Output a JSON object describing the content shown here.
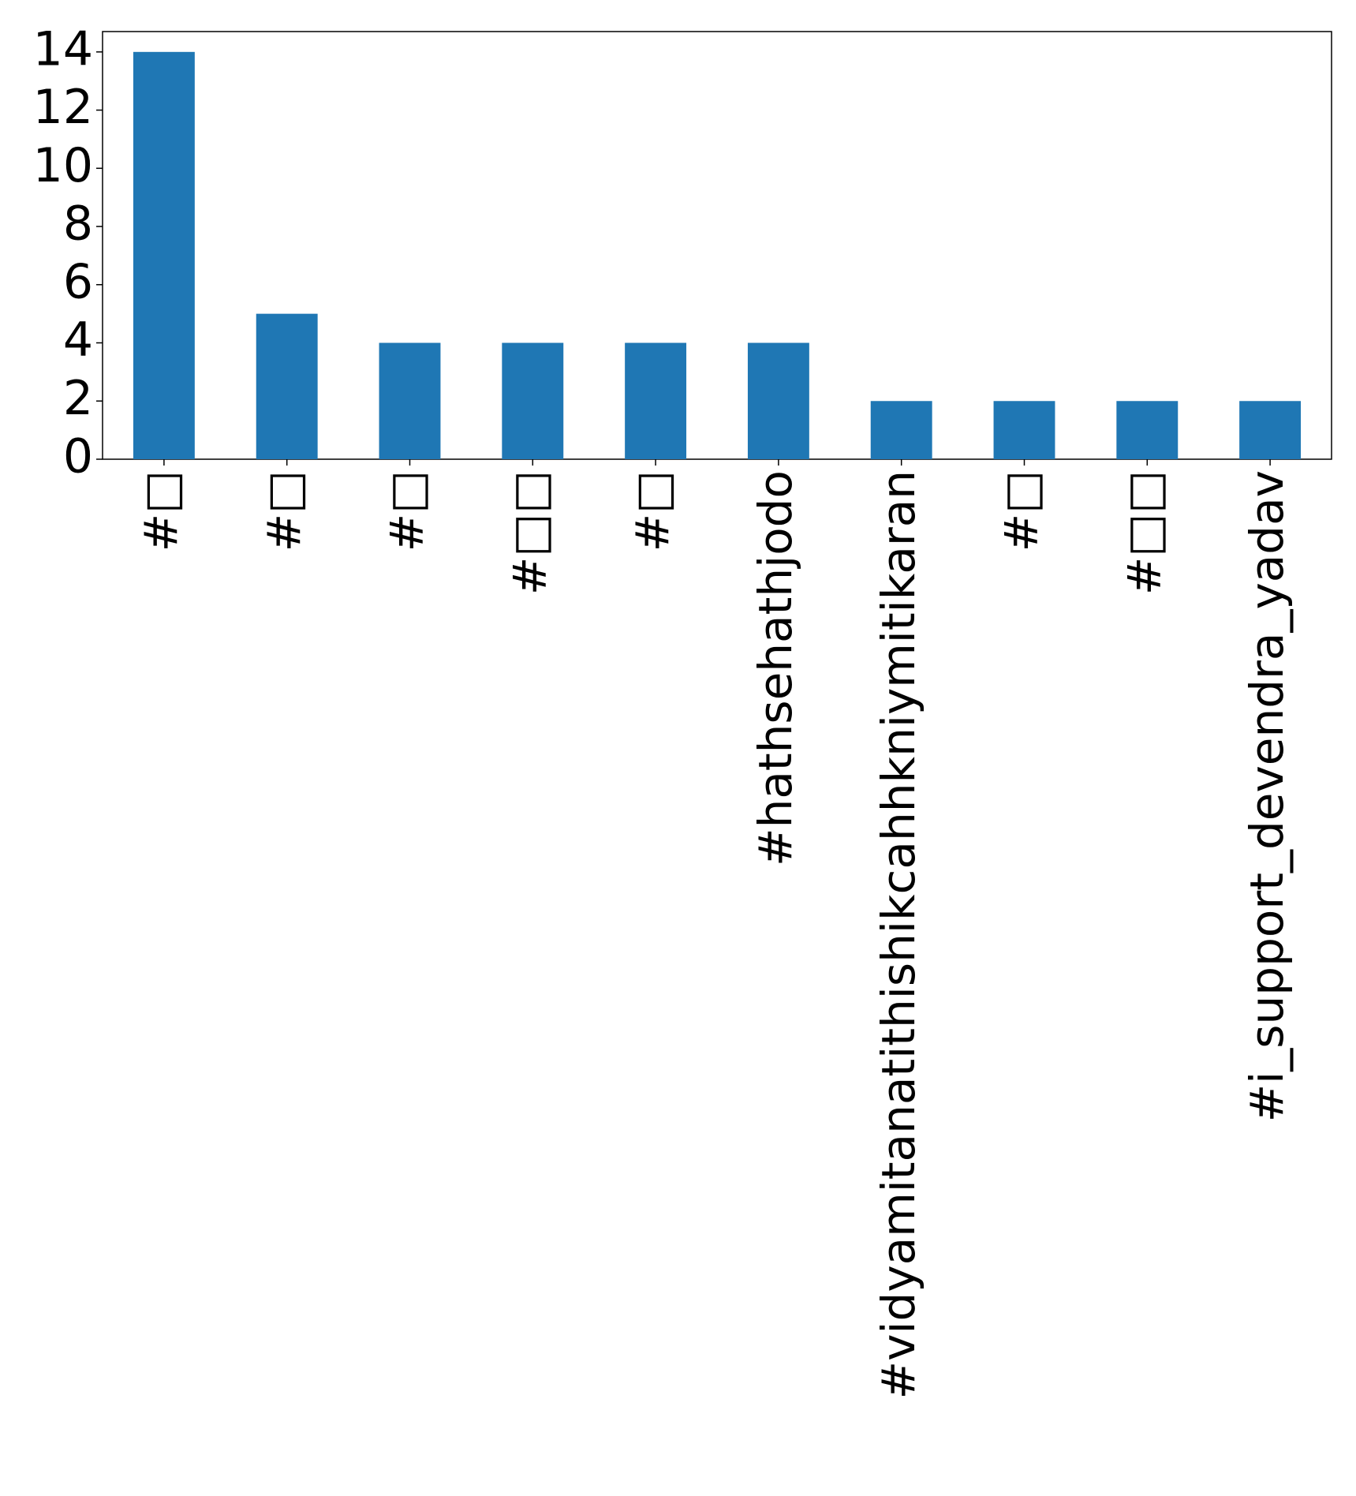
{
  "chart_data": {
    "type": "bar",
    "categories": [
      "#□",
      "#□",
      "#□",
      "#□□",
      "#□",
      "#hathsehathjodo",
      "#vidyamitanatithishikcahhkniymitikaran",
      "#□",
      "#□□",
      "#i_support_devendra_yadav"
    ],
    "values": [
      14,
      5,
      4,
      4,
      4,
      4,
      2,
      2,
      2,
      2
    ],
    "color": "#1f77b4",
    "ylim": [
      0,
      14.7
    ],
    "yticks": [
      0,
      2,
      4,
      6,
      8,
      10,
      12,
      14
    ],
    "grid": false
  }
}
